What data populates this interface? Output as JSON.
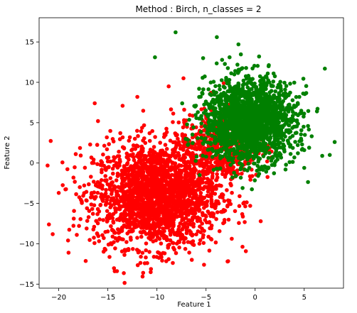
{
  "chart_data": {
    "type": "scatter",
    "title": "Method : Birch, n_classes = 2",
    "xlabel": "Feature 1",
    "ylabel": "Feature 2",
    "xlim": [
      -22,
      9
    ],
    "ylim": [
      -15.5,
      18
    ],
    "xticks": [
      -20,
      -15,
      -10,
      -5,
      0,
      5
    ],
    "yticks": [
      -15,
      -10,
      -5,
      0,
      5,
      10,
      15
    ],
    "grid": false,
    "series": [
      {
        "color": "#ff0000",
        "cluster": {
          "center": [
            -10,
            -4
          ],
          "spread": [
            3.2,
            3.2
          ],
          "count": 2200
        },
        "bridge": {
          "center": [
            -4,
            2
          ],
          "spread": [
            2.2,
            2.2
          ],
          "count": 500
        },
        "outliers": [
          [
            -21,
            -7.6
          ],
          [
            -19,
            -11.1
          ],
          [
            -14.3,
            -13.4
          ],
          [
            -11.4,
            -13.6
          ],
          [
            -5.2,
            -12.6
          ],
          [
            -16,
            5.2
          ],
          [
            -8.8,
            9.5
          ],
          [
            -7.3,
            10.5
          ],
          [
            -12,
            8.2
          ],
          [
            -18.5,
            -1.8
          ],
          [
            -20,
            -3.7
          ],
          [
            -4.5,
            8.7
          ],
          [
            -16.8,
            2.3
          ],
          [
            -13.5,
            7.1
          ]
        ]
      },
      {
        "color": "#008000",
        "cluster": {
          "center": [
            -0.5,
            5.2
          ],
          "spread": [
            2.3,
            2.5
          ],
          "count": 1900
        },
        "outliers": [
          [
            -8.1,
            16.2
          ],
          [
            -3.9,
            15.6
          ],
          [
            -1.7,
            14.7
          ],
          [
            -10.2,
            13.1
          ],
          [
            7.1,
            11.7
          ],
          [
            8.1,
            2.6
          ],
          [
            7.6,
            1.0
          ],
          [
            6.3,
            6.4
          ],
          [
            5.5,
            1.9
          ],
          [
            -5.3,
            13.0
          ],
          [
            3.1,
            -0.8
          ],
          [
            5.0,
            -0.6
          ],
          [
            0.4,
            13.2
          ],
          [
            -2.6,
            13.1
          ]
        ]
      }
    ]
  }
}
